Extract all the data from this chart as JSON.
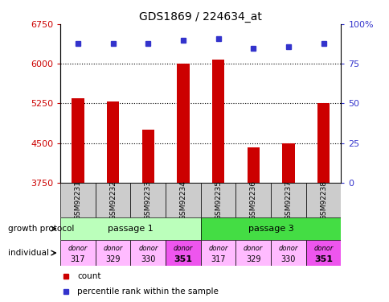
{
  "title": "GDS1869 / 224634_at",
  "samples": [
    "GSM92231",
    "GSM92232",
    "GSM92233",
    "GSM92234",
    "GSM92235",
    "GSM92236",
    "GSM92237",
    "GSM92238"
  ],
  "counts": [
    5350,
    5280,
    4750,
    6000,
    6080,
    4420,
    4500,
    5250
  ],
  "percentile_ranks": [
    88,
    88,
    88,
    90,
    91,
    85,
    86,
    88
  ],
  "ylim_left": [
    3750,
    6750
  ],
  "ylim_right": [
    0,
    100
  ],
  "yticks_left": [
    3750,
    4500,
    5250,
    6000,
    6750
  ],
  "yticks_right": [
    0,
    25,
    50,
    75,
    100
  ],
  "bar_color": "#cc0000",
  "dot_color": "#3333cc",
  "passage1_color": "#bbffbb",
  "passage3_color": "#44dd44",
  "donor_light_color": "#ffbbff",
  "donor_dark_color": "#ee55ee",
  "sample_box_color": "#cccccc",
  "passage_labels": [
    "passage 1",
    "passage 3"
  ],
  "donors_top": [
    "donor",
    "donor",
    "donor",
    "donor",
    "donor",
    "donor",
    "donor",
    "donor"
  ],
  "donors_bottom": [
    "317",
    "329",
    "330",
    "351",
    "317",
    "329",
    "330",
    "351"
  ],
  "donor_bold": [
    false,
    false,
    false,
    true,
    false,
    false,
    false,
    true
  ],
  "growth_protocol_label": "growth protocol",
  "individual_label": "individual",
  "legend_count": "count",
  "legend_percentile": "percentile rank within the sample",
  "left_ytick_color": "#cc0000",
  "right_ytick_color": "#3333cc",
  "grid_color": "#000000",
  "grid_ticks": [
    6000,
    5250,
    4500
  ],
  "bar_width": 0.35
}
